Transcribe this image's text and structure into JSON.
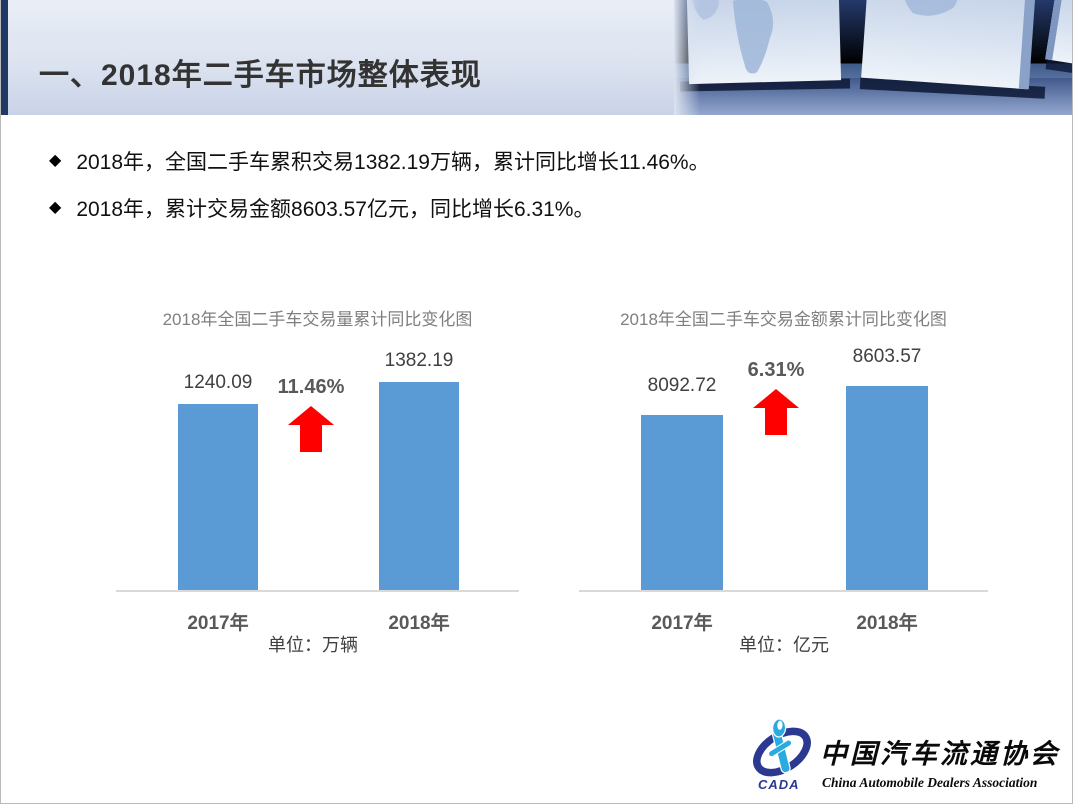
{
  "header": {
    "title": "一、2018年二手车市场整体表现"
  },
  "bullets": [
    {
      "marker": "◆",
      "text": "2018年，全国二手车累积交易1382.19万辆，累计同比增长11.46%。"
    },
    {
      "marker": "◆",
      "text": "2018年，累计交易金额8603.57亿元，同比增长6.31%。"
    }
  ],
  "chart_data": [
    {
      "type": "bar",
      "title": "2018年全国二手车交易量累计同比变化图",
      "categories": [
        "2017年",
        "2018年"
      ],
      "values": [
        1240.09,
        1382.19
      ],
      "value_labels": [
        "1240.09",
        "1382.19"
      ],
      "growth_label": "11.46%",
      "unit_label": "单位：万辆",
      "xlabel": "",
      "ylabel": "",
      "ylim": [
        0,
        1550
      ],
      "grid": false,
      "legend": "none",
      "bar_color": "#5B9BD5",
      "arrow_color": "#FF0000"
    },
    {
      "type": "bar",
      "title": "2018年全国二手车交易金额累计同比变化图",
      "categories": [
        "2017年",
        "2018年"
      ],
      "values": [
        8092.72,
        8603.57
      ],
      "value_labels": [
        "8092.72",
        "8603.57"
      ],
      "growth_label": "6.31%",
      "unit_label": "单位：亿元",
      "xlabel": "",
      "ylabel": "",
      "ylim": [
        5000,
        8800
      ],
      "grid": false,
      "legend": "none",
      "bar_color": "#5B9BD5",
      "arrow_color": "#FF0000"
    }
  ],
  "logo": {
    "acronym": "CADA",
    "name_zh": "中国汽车流通协会",
    "name_en": "China Automobile Dealers Association"
  },
  "colors": {
    "header_accent": "#1f3864",
    "bar_blue": "#5B9BD5",
    "arrow_red": "#FF0000",
    "growth_text": "#595959",
    "chart_title_gray": "#7f7f7f"
  }
}
